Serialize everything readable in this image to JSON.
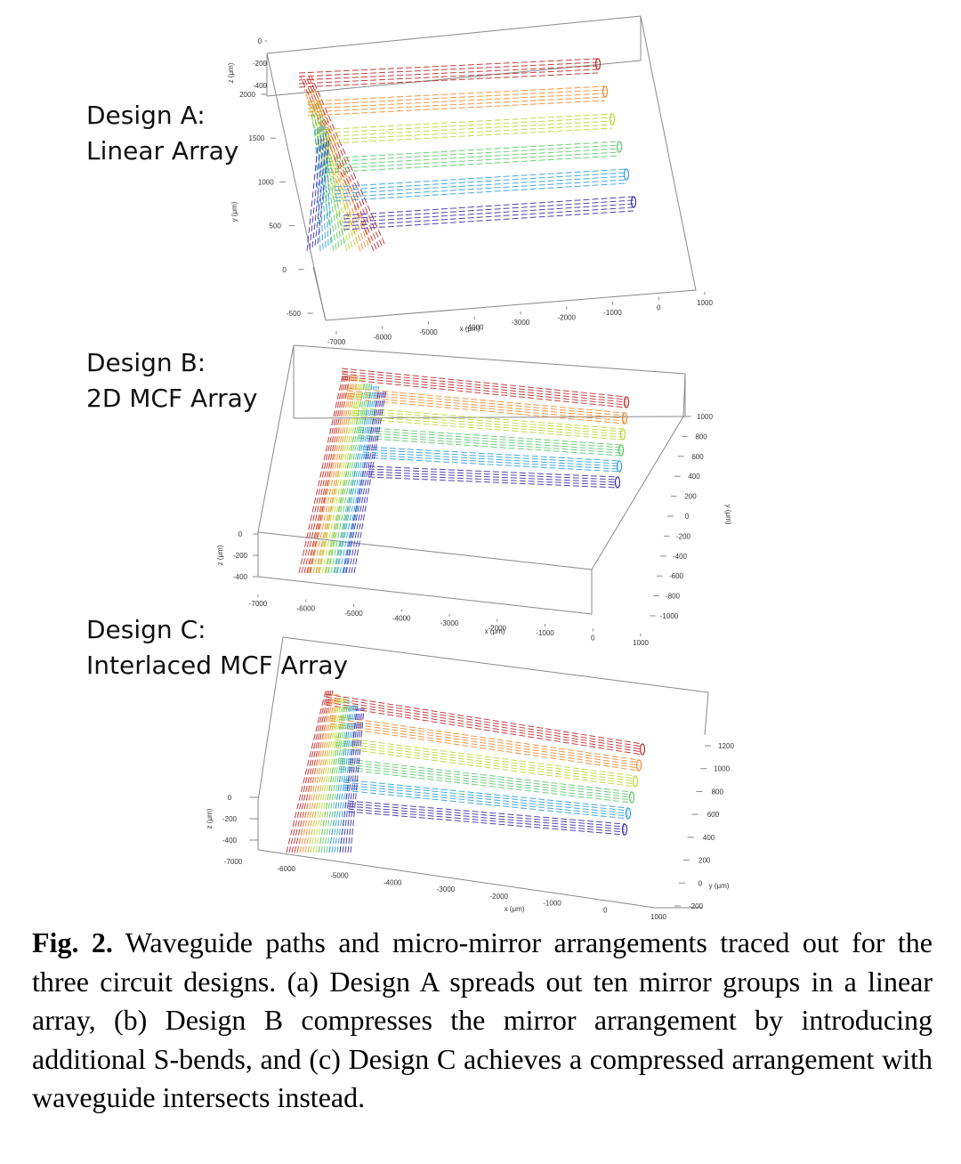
{
  "designs": [
    {
      "key": "A",
      "title": "Design A:",
      "subtitle": "Linear Array",
      "x_axis_label": "x (μm)",
      "y_axis_label": "y (μm)",
      "z_axis_label": "z (μm)",
      "x_ticks": [
        "-7000",
        "-6000",
        "-5000",
        "-4000",
        "-3000",
        "-2000",
        "-1000",
        "0",
        "1000"
      ],
      "y_ticks": [
        "-500",
        "0",
        "500",
        "1000",
        "1500",
        "2000"
      ],
      "z_ticks": [
        "0",
        "-200",
        "-400"
      ]
    },
    {
      "key": "B",
      "title": "Design B:",
      "subtitle": "2D MCF Array",
      "x_axis_label": "x (μm)",
      "y_axis_label": "y (μm)",
      "z_axis_label": "z (μm)",
      "x_ticks": [
        "-7000",
        "-6000",
        "-5000",
        "-4000",
        "-3000",
        "-2000",
        "-1000",
        "0",
        "1000"
      ],
      "y_ticks": [
        "1000",
        "800",
        "600",
        "400",
        "200",
        "0",
        "-200",
        "-400",
        "-600",
        "-800",
        "-1000"
      ],
      "z_ticks": [
        "0",
        "-200",
        "-400"
      ]
    },
    {
      "key": "C",
      "title": "Design C:",
      "subtitle": "Interlaced MCF Array",
      "x_axis_label": "x (μm)",
      "y_axis_label": "y (μm)",
      "z_axis_label": "z (μm)",
      "x_ticks": [
        "-7000",
        "-6000",
        "-5000",
        "-4000",
        "-3000",
        "-2000",
        "-1000",
        "0",
        "1000"
      ],
      "y_ticks": [
        "1200",
        "1000",
        "800",
        "600",
        "400",
        "200",
        "0",
        "-200"
      ],
      "z_ticks": [
        "0",
        "-200",
        "-400"
      ]
    }
  ],
  "colors": [
    "#c0282a",
    "#e0502a",
    "#f08a2c",
    "#e8c62a",
    "#bcd634",
    "#5cc86a",
    "#36c2c6",
    "#2e9ee0",
    "#2c5fd0",
    "#3a2fa8"
  ],
  "caption": {
    "label": "Fig. 2.",
    "text": " Waveguide paths and micro-mirror arrangements traced out for the three circuit designs. (a) Design A spreads out ten mirror groups in a linear array, (b) Design B compresses the mirror arrangement by introducing additional S-bends, and (c) Design C achieves a compressed arrangement with waveguide intersects instead."
  }
}
